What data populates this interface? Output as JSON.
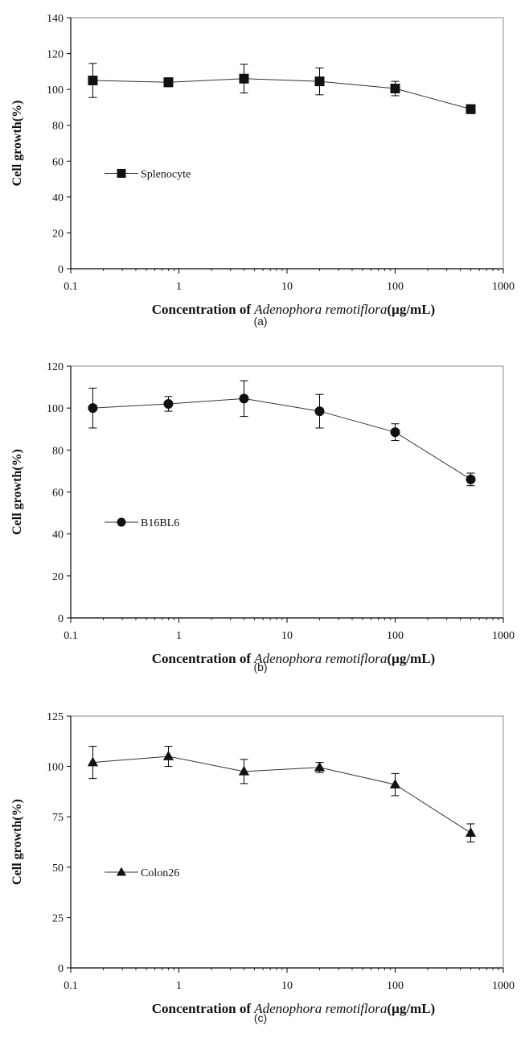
{
  "chart_data": [
    {
      "type": "line",
      "panel_label": "(a)",
      "xlabel_prefix": "Concentration of ",
      "xlabel_italic": "Adenophora remotiflora",
      "xlabel_suffix": "(µg/mL)",
      "ylabel": "Cell  growth(%)",
      "xscale": "log",
      "xlim": [
        0.1,
        1000
      ],
      "ylim": [
        0,
        140
      ],
      "xticks": [
        0.1,
        1,
        10,
        100,
        1000
      ],
      "xtick_labels": [
        "0.1",
        "1",
        "10",
        "100",
        "1000"
      ],
      "yticks": [
        0,
        20,
        40,
        60,
        80,
        100,
        120,
        140
      ],
      "ytick_labels": [
        "0",
        "20",
        "40",
        "60",
        "80",
        "100",
        "120",
        "140"
      ],
      "grid": false,
      "legend_position": "center-left",
      "series": [
        {
          "name": "Splenocyte",
          "marker": "square",
          "x": [
            0.16,
            0.8,
            4,
            20,
            100,
            500
          ],
          "y": [
            105,
            104,
            106,
            104.5,
            100.5,
            89
          ],
          "error": [
            9.5,
            2.5,
            8,
            7.5,
            4,
            2.5
          ]
        }
      ]
    },
    {
      "type": "line",
      "panel_label": "(b)",
      "xlabel_prefix": "Concentration of ",
      "xlabel_italic": "Adenophora remotiflora",
      "xlabel_suffix": "(µg/mL)",
      "ylabel": "Cell  growth(%)",
      "xscale": "log",
      "xlim": [
        0.1,
        1000
      ],
      "ylim": [
        0,
        120
      ],
      "xticks": [
        0.1,
        1,
        10,
        100,
        1000
      ],
      "xtick_labels": [
        "0.1",
        "1",
        "10",
        "100",
        "1000"
      ],
      "yticks": [
        0,
        20,
        40,
        60,
        80,
        100,
        120
      ],
      "ytick_labels": [
        "0",
        "20",
        "40",
        "60",
        "80",
        "100",
        "120"
      ],
      "grid": false,
      "legend_position": "center-left",
      "series": [
        {
          "name": "B16BL6",
          "marker": "circle",
          "x": [
            0.16,
            0.8,
            4,
            20,
            100,
            500
          ],
          "y": [
            100,
            102,
            104.5,
            98.5,
            88.5,
            66
          ],
          "error": [
            9.5,
            3.5,
            8.5,
            8,
            4,
            3
          ]
        }
      ]
    },
    {
      "type": "line",
      "panel_label": "(c)",
      "xlabel_prefix": "Concentration of ",
      "xlabel_italic": "Adenophora remotiflora",
      "xlabel_suffix": "(µg/mL)",
      "ylabel": "Cell  growth(%)",
      "xscale": "log",
      "xlim": [
        0.1,
        1000
      ],
      "ylim": [
        0,
        125
      ],
      "xticks": [
        0.1,
        1,
        10,
        100,
        1000
      ],
      "xtick_labels": [
        "0.1",
        "1",
        "10",
        "100",
        "1000"
      ],
      "yticks": [
        0,
        25,
        50,
        75,
        100,
        125
      ],
      "ytick_labels": [
        "0",
        "25",
        "50",
        "75",
        "100",
        "125"
      ],
      "grid": false,
      "legend_position": "center-left",
      "series": [
        {
          "name": "Colon26",
          "marker": "triangle",
          "x": [
            0.16,
            0.8,
            4,
            20,
            100,
            500
          ],
          "y": [
            102,
            105,
            97.5,
            99.5,
            91,
            67
          ],
          "error": [
            8,
            5,
            6,
            2.5,
            5.5,
            4.5
          ]
        }
      ]
    }
  ]
}
